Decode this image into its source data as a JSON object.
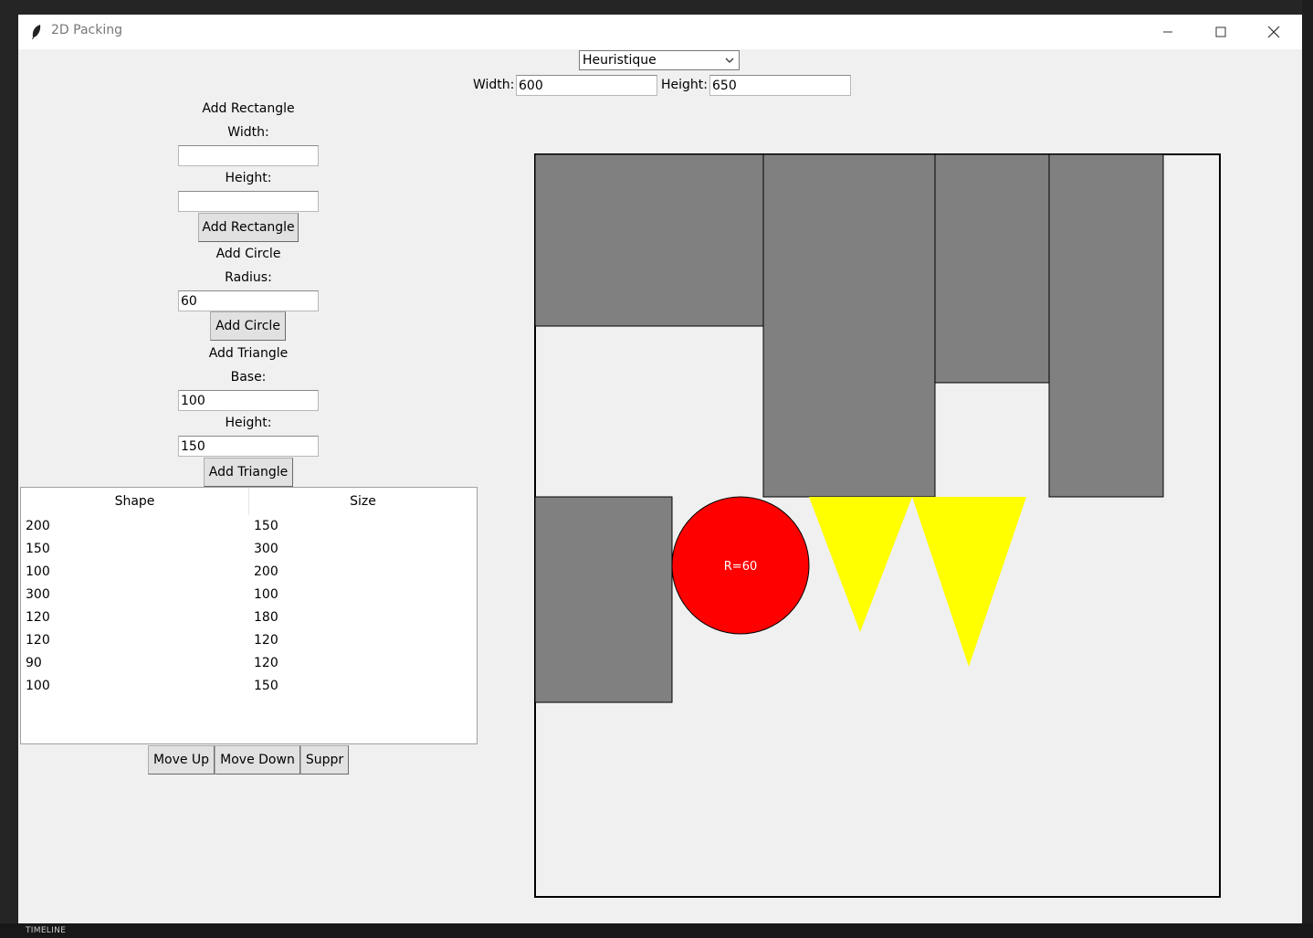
{
  "window": {
    "title": "2D Packing",
    "controls": [
      "minimize",
      "maximize",
      "close"
    ]
  },
  "algorithm": {
    "selected": "Heuristique"
  },
  "container": {
    "width_label": "Width:",
    "width_value": "600",
    "height_label": "Height:",
    "height_value": "650"
  },
  "rectangle_form": {
    "heading": "Add Rectangle",
    "width_label": "Width:",
    "width_value": "",
    "height_label": "Height:",
    "height_value": "",
    "button": "Add Rectangle"
  },
  "circle_form": {
    "heading": "Add Circle",
    "radius_label": "Radius:",
    "radius_value": "60",
    "button": "Add Circle"
  },
  "triangle_form": {
    "heading": "Add Triangle",
    "base_label": "Base:",
    "base_value": "100",
    "height_label": "Height:",
    "height_value": "150",
    "button": "Add Triangle"
  },
  "shape_list": {
    "columns": [
      "Shape",
      "Size"
    ],
    "rows": [
      [
        "200",
        "150"
      ],
      [
        "150",
        "300"
      ],
      [
        "100",
        "200"
      ],
      [
        "300",
        "100"
      ],
      [
        "120",
        "180"
      ],
      [
        "120",
        "120"
      ],
      [
        "90",
        "120"
      ],
      [
        "100",
        "150"
      ]
    ]
  },
  "list_buttons": {
    "move_up": "Move Up",
    "move_down": "Move Down",
    "delete": "Suppr"
  },
  "packing_canvas": {
    "circle_label": "R=60",
    "colors": {
      "rectangle": "#808080",
      "circle": "#ff0000",
      "triangle": "#ffff00",
      "background": "#f0f0f0",
      "border": "#000000"
    }
  },
  "background_editor": {
    "timeline_label": "TIMELINE"
  }
}
